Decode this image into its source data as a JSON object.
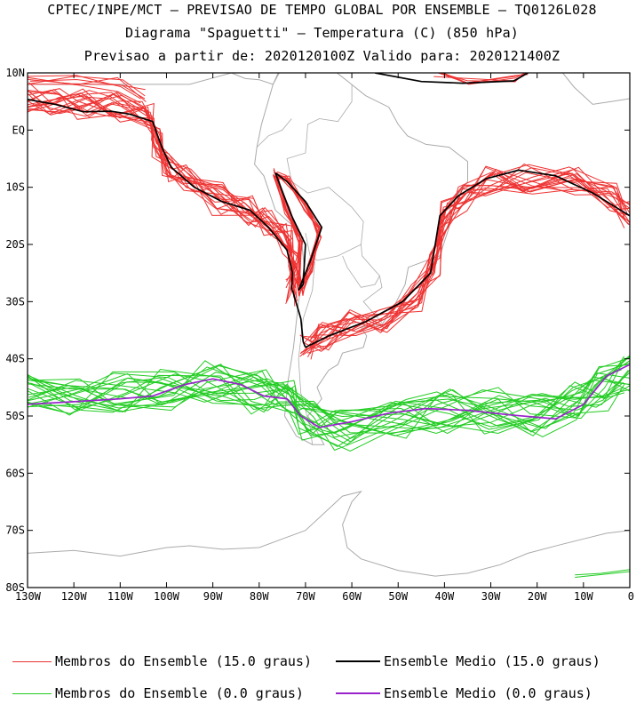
{
  "header": {
    "line1": "CPTEC/INPE/MCT – PREVISAO DE TEMPO GLOBAL POR ENSEMBLE – TQ0126L028",
    "line2": "Diagrama \"Spaguetti\" – Temperatura (C) (850 hPa)",
    "line3": "Previsao a partir de: 2020120100Z  Valido para: 2020121400Z"
  },
  "map": {
    "lon_range": [
      -130,
      0
    ],
    "lat_range": [
      -80,
      10
    ],
    "lat_labels": [
      "10N",
      "EQ",
      "10S",
      "20S",
      "30S",
      "40S",
      "50S",
      "60S",
      "70S",
      "80S"
    ],
    "lon_labels": [
      "130W",
      "120W",
      "110W",
      "100W",
      "90W",
      "80W",
      "70W",
      "60W",
      "50W",
      "40W",
      "30W",
      "20W",
      "10W",
      "0"
    ],
    "colors": {
      "member_15": "#ee3333",
      "mean_15": "#000000",
      "member_0": "#22cc22",
      "mean_0": "#9922cc",
      "coast": "#aaaaaa"
    }
  },
  "legend": [
    {
      "label": "Membros do Ensemble (15.0 graus)",
      "color": "#ee3333"
    },
    {
      "label": "Ensemble Medio (15.0 graus)",
      "color": "#000000"
    },
    {
      "label": "Membros do Ensemble (0.0 graus)",
      "color": "#22cc22"
    },
    {
      "label": "Ensemble Medio (0.0 graus)",
      "color": "#9922cc"
    }
  ]
}
